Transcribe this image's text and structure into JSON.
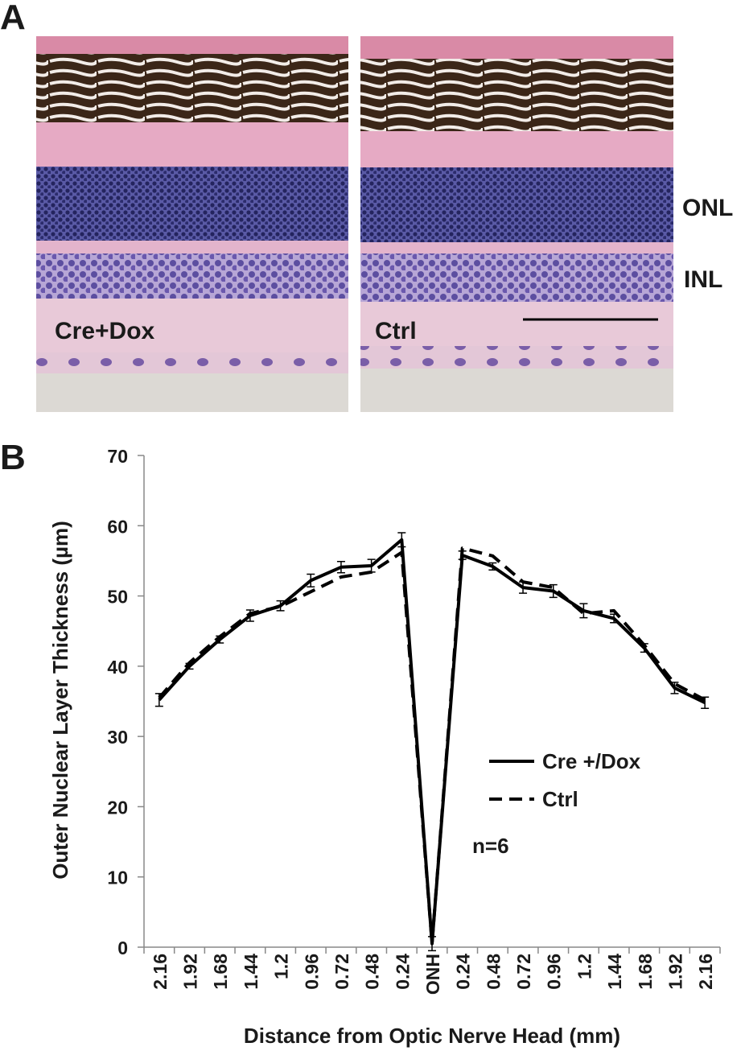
{
  "panel_a": {
    "label": "A",
    "left_image_label": "Cre+Dox",
    "right_image_label": "Ctrl",
    "layer_labels": [
      "ONL",
      "INL"
    ]
  },
  "chart_data": {
    "type": "line",
    "panel_label": "B",
    "x_label": "Distance from Optic Nerve Head (mm)",
    "y_label": "Outer Nuclear Layer Thickness (µm)",
    "categories": [
      "2.16",
      "1.92",
      "1.68",
      "1.44",
      "1.2",
      "0.96",
      "0.72",
      "0.48",
      "0.24",
      "ONH",
      "0.24",
      "0.48",
      "0.72",
      "0.96",
      "1.2",
      "1.44",
      "1.68",
      "1.92",
      "2.16"
    ],
    "series": [
      {
        "name": "Cre +/Dox",
        "color": "#000000",
        "dash": "solid",
        "values": [
          35.2,
          40.0,
          43.8,
          47.2,
          48.6,
          52.2,
          54.1,
          54.3,
          58.0,
          0.5,
          55.8,
          54.2,
          51.2,
          50.7,
          47.9,
          46.8,
          42.6,
          36.9,
          34.8
        ],
        "errors": [
          0.9,
          0.4,
          0.5,
          0.8,
          0.7,
          0.9,
          0.8,
          0.9,
          1.0,
          1.0,
          0.6,
          0.5,
          0.8,
          0.9,
          1.0,
          0.6,
          0.6,
          0.8,
          0.8
        ]
      },
      {
        "name": "Ctrl",
        "color": "#000000",
        "dash": "dashed",
        "values": [
          35.5,
          40.5,
          44.2,
          47.5,
          48.5,
          50.6,
          52.7,
          53.4,
          56.2,
          0.5,
          56.8,
          55.7,
          52.0,
          51.2,
          47.5,
          47.9,
          43.0,
          37.5,
          35.2
        ]
      }
    ],
    "ylim": [
      0,
      70
    ],
    "yticks": [
      0,
      10,
      20,
      30,
      40,
      50,
      60,
      70
    ],
    "annotation": "n=6",
    "legend": "right"
  }
}
